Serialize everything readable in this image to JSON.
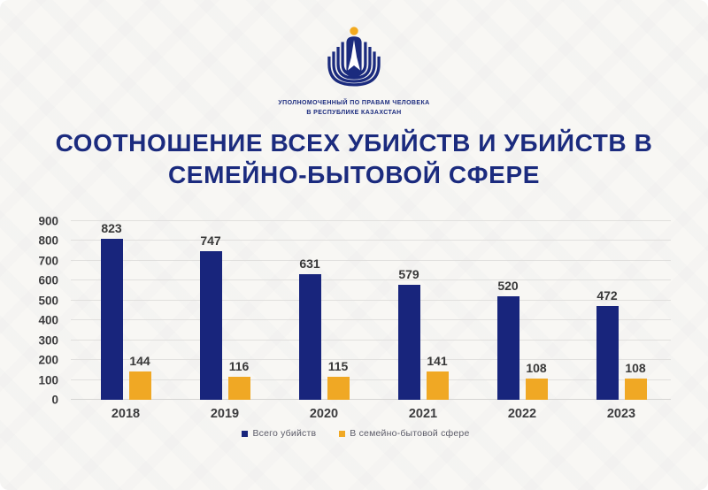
{
  "logo": {
    "org_line1": "УПОЛНОМОЧЕННЫЙ ПО ПРАВАМ ЧЕЛОВЕКА",
    "org_line2": "В РЕСПУБЛИКЕ КАЗАХСТАН"
  },
  "title_lines": [
    "СООТНОШЕНИЕ ВСЕХ УБИЙСТВ И УБИЙСТВ В",
    "СЕМЕЙНО-БЫТОВОЙ СФЕРЕ"
  ],
  "colors": {
    "navy": "#18257C",
    "title_navy": "#1B2B7E",
    "gold": "#F0A824",
    "grid": "#E1E0DE",
    "axis_text": "#3D3D3F",
    "legend_text": "#5C5C69",
    "background": "#F8F7F4"
  },
  "icons": {
    "emblem": "ombudsman-emblem-icon",
    "emblem_sun": "sun-circle-icon",
    "emblem_person": "person-figure-icon"
  },
  "chart_data": {
    "type": "bar",
    "title": "СООТНОШЕНИЕ ВСЕХ УБИЙСТВ И УБИЙСТВ В СЕМЕЙНО-БЫТОВОЙ СФЕРЕ",
    "categories": [
      "2018",
      "2019",
      "2020",
      "2021",
      "2022",
      "2023"
    ],
    "series": [
      {
        "name": "Всего убийств",
        "color_key": "navy",
        "values": [
          823,
          747,
          631,
          579,
          520,
          472
        ]
      },
      {
        "name": "В семейно-бытовой сфере",
        "color_key": "gold",
        "values": [
          144,
          116,
          115,
          141,
          108,
          108
        ]
      }
    ],
    "xlabel": "",
    "ylabel": "",
    "ylim": [
      0,
      900
    ],
    "yticks": [
      0,
      100,
      200,
      300,
      400,
      500,
      600,
      700,
      800,
      900
    ],
    "grid": true,
    "legend_position": "bottom"
  }
}
